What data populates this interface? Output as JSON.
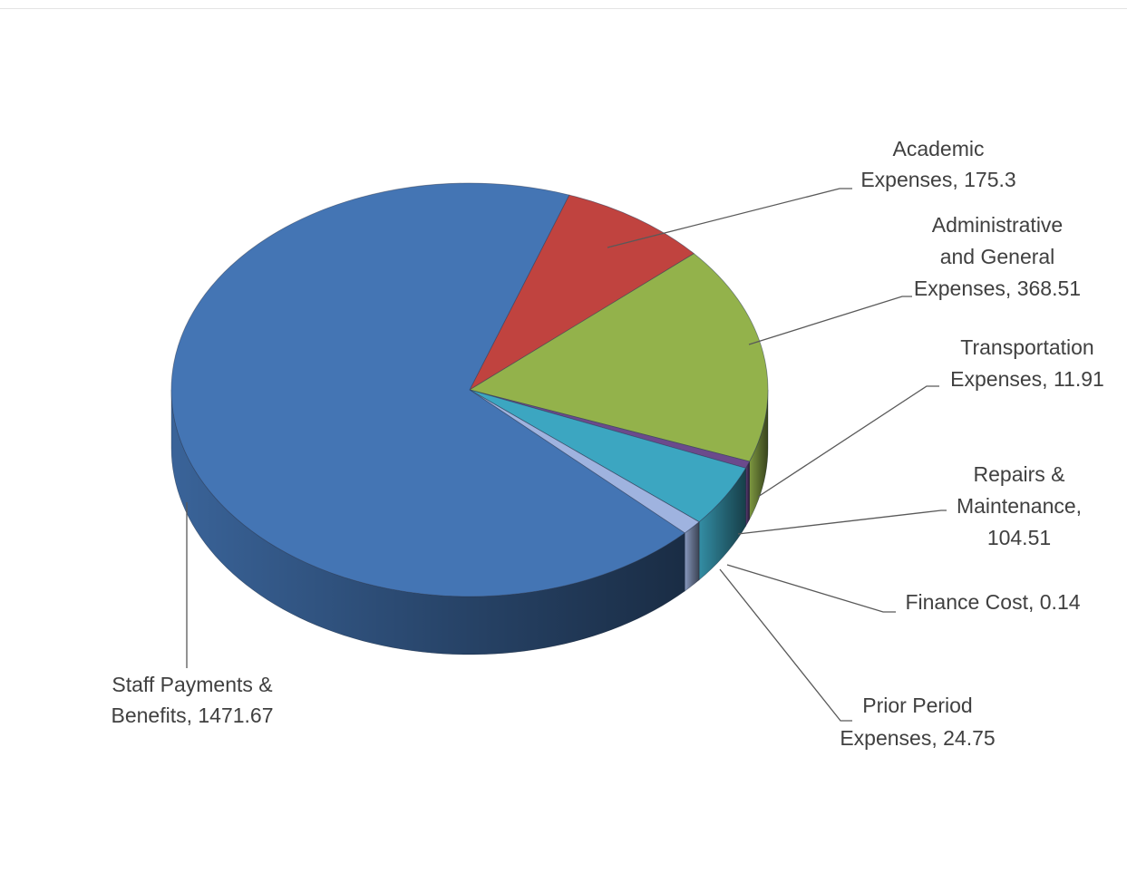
{
  "chart_data": {
    "type": "pie",
    "style": "3d",
    "slices": [
      {
        "label_lines": [
          "Academic",
          "Expenses, 175.3"
        ],
        "value": 175.3,
        "color": "#c0433f"
      },
      {
        "label_lines": [
          "Administrative",
          "and   General",
          "Expenses, 368.51"
        ],
        "value": 368.51,
        "color": "#93b24b"
      },
      {
        "label_lines": [
          "Transportation",
          "Expenses, 11.91"
        ],
        "value": 11.91,
        "color": "#6b4a8c"
      },
      {
        "label_lines": [
          "Repairs &",
          "Maintenance,",
          "104.51"
        ],
        "value": 104.51,
        "color": "#3ca6c1"
      },
      {
        "label_lines": [
          "Finance Cost, 0.14"
        ],
        "value": 0.14,
        "color": "#e0822e"
      },
      {
        "label_lines": [
          "Prior Period",
          "Expenses, 24.75"
        ],
        "value": 24.75,
        "color": "#9fb3df"
      },
      {
        "label_lines": [
          "Staff Payments &",
          "Benefits, 1471.67"
        ],
        "value": 1471.67,
        "color": "#4475b4"
      }
    ],
    "legend": "none"
  }
}
